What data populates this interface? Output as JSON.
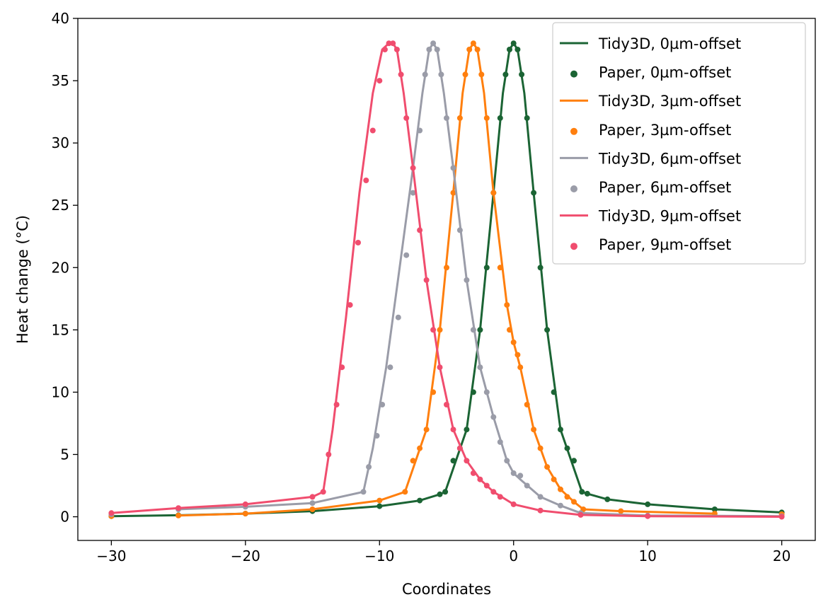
{
  "chart_data": {
    "type": "line",
    "xlabel": "Coordinates",
    "ylabel": "Heat change (°C)",
    "xlim": [
      -32.5,
      22.5
    ],
    "ylim": [
      -1.9,
      40
    ],
    "xticks": [
      -30,
      -20,
      -10,
      0,
      10,
      20
    ],
    "yticks": [
      0,
      5,
      10,
      15,
      20,
      25,
      30,
      35,
      40
    ],
    "x_tick_labels": [
      "−30",
      "−20",
      "−10",
      "0",
      "10",
      "20"
    ],
    "y_tick_labels": [
      "0",
      "5",
      "10",
      "15",
      "20",
      "25",
      "30",
      "35",
      "40"
    ],
    "grid": false,
    "legend_position": "top-right",
    "series": [
      {
        "name": "Tidy3D, 0µm-offset",
        "kind": "line",
        "color": "#1b6434",
        "x": [
          -30,
          -25,
          -20,
          -15,
          -10,
          -7,
          -5.5,
          -5.1,
          -3.5,
          -2.5,
          -1.5,
          -0.8,
          -0.3,
          0,
          0.3,
          0.8,
          1.5,
          2.5,
          3.5,
          5.1,
          5.5,
          7,
          10,
          15,
          20
        ],
        "y": [
          0.05,
          0.12,
          0.25,
          0.45,
          0.85,
          1.3,
          1.8,
          2.0,
          7.0,
          15.0,
          26.0,
          34.0,
          37.5,
          38.0,
          37.5,
          34.0,
          26.0,
          15.0,
          7.0,
          2.0,
          1.85,
          1.4,
          1.0,
          0.6,
          0.35
        ]
      },
      {
        "name": "Paper, 0µm-offset",
        "kind": "scatter",
        "color": "#1b6434",
        "x": [
          -30,
          -25,
          -20,
          -15,
          -10,
          -7,
          -5.5,
          -5.1,
          -4.5,
          -4,
          -3.5,
          -3,
          -2.5,
          -2,
          -1.5,
          -1,
          -0.6,
          -0.3,
          0,
          0.3,
          0.6,
          1,
          1.5,
          2,
          2.5,
          3,
          3.5,
          4,
          4.5,
          5.1,
          5.5,
          7,
          10,
          15,
          20
        ],
        "y": [
          0.05,
          0.12,
          0.25,
          0.45,
          0.85,
          1.3,
          1.8,
          2.0,
          4.5,
          5.5,
          7.0,
          10.0,
          15.0,
          20.0,
          26.0,
          32.0,
          35.5,
          37.5,
          38.0,
          37.5,
          35.5,
          32.0,
          26.0,
          20.0,
          15.0,
          10.0,
          7.0,
          5.5,
          4.5,
          2.0,
          1.85,
          1.4,
          1.0,
          0.6,
          0.35
        ]
      },
      {
        "name": "Tidy3D, 3µm-offset",
        "kind": "line",
        "color": "#ff7f0e",
        "x": [
          -25,
          -20,
          -15,
          -10,
          -8.1,
          -6.5,
          -5.5,
          -4.5,
          -3.8,
          -3.3,
          -3,
          -2.7,
          -2.2,
          -1.5,
          -0.5,
          0,
          0.5,
          1.5,
          2.5,
          3.5,
          4.5,
          5.2,
          8,
          15
        ],
        "y": [
          0.1,
          0.25,
          0.6,
          1.3,
          2.0,
          7.0,
          15.0,
          26.0,
          34.0,
          37.5,
          38.0,
          37.5,
          34.0,
          26.0,
          17.0,
          14.0,
          12.0,
          7.0,
          4.0,
          2.2,
          1.2,
          0.6,
          0.45,
          0.25
        ]
      },
      {
        "name": "Paper, 3µm-offset",
        "kind": "scatter",
        "color": "#ff7f0e",
        "x": [
          -30,
          -25,
          -20,
          -15,
          -10,
          -8.1,
          -7.5,
          -7,
          -6.5,
          -6,
          -5.5,
          -5,
          -4.5,
          -4,
          -3.6,
          -3.3,
          -3,
          -2.7,
          -2.4,
          -2,
          -1.5,
          -1,
          -0.5,
          -0.3,
          0,
          0.3,
          0.5,
          1,
          1.5,
          2,
          2.5,
          3,
          3.5,
          4,
          4.5,
          5.2,
          8,
          15,
          20
        ],
        "y": [
          0.05,
          0.1,
          0.25,
          0.6,
          1.3,
          2.0,
          4.5,
          5.5,
          7.0,
          10.0,
          15.0,
          20.0,
          26.0,
          32.0,
          35.5,
          37.5,
          38.0,
          37.5,
          35.5,
          32.0,
          26.0,
          20.0,
          17.0,
          15.0,
          14.0,
          13.0,
          12.0,
          9.0,
          7.0,
          5.5,
          4.0,
          3.0,
          2.2,
          1.6,
          1.2,
          0.6,
          0.45,
          0.25,
          0.2
        ]
      },
      {
        "name": "Tidy3D, 6µm-offset",
        "kind": "line",
        "color": "#9a9ca8",
        "x": [
          -25,
          -20,
          -15,
          -11.2,
          -10.5,
          -9.5,
          -8.5,
          -7.5,
          -6.8,
          -6.3,
          -6,
          -5.7,
          -5.2,
          -4.5,
          -3.5,
          -2.5,
          -1.5,
          -0.5,
          0,
          0.5,
          2,
          3.5,
          5,
          10,
          20
        ],
        "y": [
          0.6,
          0.8,
          1.1,
          2.0,
          5.5,
          12.0,
          20.0,
          28.0,
          34.0,
          37.5,
          38.0,
          37.5,
          34.0,
          28.0,
          19.0,
          12.0,
          8.0,
          4.5,
          3.5,
          3.0,
          1.6,
          0.9,
          0.3,
          0.1,
          0.05
        ]
      },
      {
        "name": "Paper, 6µm-offset",
        "kind": "scatter",
        "color": "#9a9ca8",
        "x": [
          -30,
          -25,
          -20,
          -15,
          -11.2,
          -10.8,
          -10.2,
          -9.8,
          -9.2,
          -8.6,
          -8,
          -7.5,
          -7,
          -6.6,
          -6.3,
          -6,
          -5.7,
          -5.4,
          -5,
          -4.5,
          -4,
          -3.5,
          -3,
          -2.5,
          -2,
          -1.5,
          -1,
          -0.5,
          0,
          0.5,
          1,
          2,
          3.5,
          5,
          10,
          20
        ],
        "y": [
          0.2,
          0.6,
          0.8,
          1.1,
          2.0,
          4.0,
          6.5,
          9.0,
          12.0,
          16.0,
          21.0,
          26.0,
          31.0,
          35.5,
          37.5,
          38.0,
          37.5,
          35.5,
          32.0,
          28.0,
          23.0,
          19.0,
          15.0,
          12.0,
          10.0,
          8.0,
          6.0,
          4.5,
          3.5,
          3.3,
          2.5,
          1.6,
          0.9,
          0.3,
          0.1,
          0.05
        ]
      },
      {
        "name": "Tidy3D, 9µm-offset",
        "kind": "line",
        "color": "#f04d6e",
        "x": [
          -30,
          -25,
          -20,
          -15,
          -14.2,
          -13.5,
          -12.5,
          -11.5,
          -10.5,
          -9.8,
          -9.3,
          -9,
          -8.7,
          -8.2,
          -7.5,
          -6.5,
          -5.5,
          -4.5,
          -3.5,
          -2.5,
          -1.5,
          0,
          2,
          5,
          10,
          20
        ],
        "y": [
          0.3,
          0.7,
          1.0,
          1.6,
          2.0,
          7.0,
          16.0,
          26.0,
          34.0,
          37.5,
          38.0,
          38.0,
          37.5,
          34.0,
          28.0,
          19.0,
          12.0,
          7.0,
          4.5,
          3.0,
          2.0,
          1.0,
          0.5,
          0.15,
          0.05,
          0.0
        ]
      },
      {
        "name": "Paper, 9µm-offset",
        "kind": "scatter",
        "color": "#f04d6e",
        "x": [
          -30,
          -25,
          -20,
          -15,
          -14.2,
          -13.8,
          -13.2,
          -12.8,
          -12.2,
          -11.6,
          -11,
          -10.5,
          -10,
          -9.6,
          -9.3,
          -9,
          -8.7,
          -8.4,
          -8,
          -7.5,
          -7,
          -6.5,
          -6,
          -5.5,
          -5,
          -4.5,
          -4,
          -3.5,
          -3,
          -2.5,
          -2,
          -1.5,
          -1,
          0,
          2,
          5,
          10,
          20
        ],
        "y": [
          0.3,
          0.7,
          1.0,
          1.6,
          2.0,
          5.0,
          9.0,
          12.0,
          17.0,
          22.0,
          27.0,
          31.0,
          35.0,
          37.5,
          38.0,
          38.0,
          37.5,
          35.5,
          32.0,
          28.0,
          23.0,
          19.0,
          15.0,
          12.0,
          9.0,
          7.0,
          5.5,
          4.5,
          3.5,
          3.0,
          2.5,
          2.0,
          1.6,
          1.0,
          0.5,
          0.15,
          0.05,
          0.0
        ]
      }
    ]
  }
}
